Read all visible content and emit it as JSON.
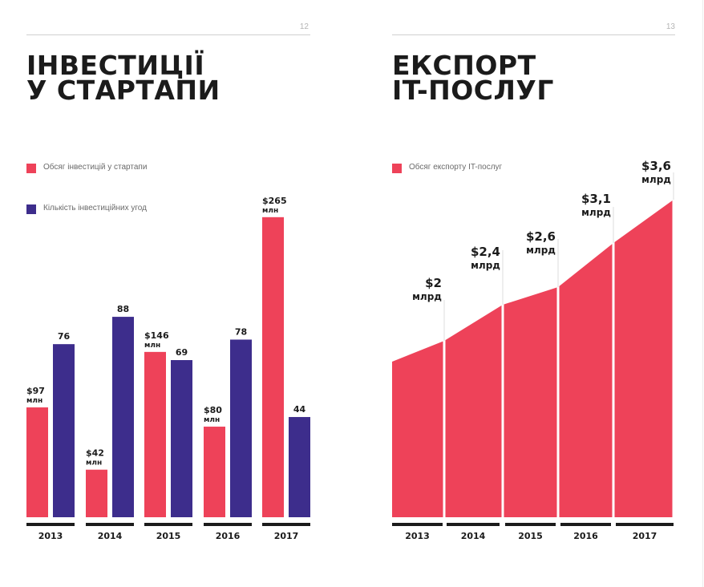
{
  "colors": {
    "red": "#ee4259",
    "purple": "#3d2d8c",
    "ink": "#1b1b1b",
    "muted": "#6a6a6a"
  },
  "left_page": {
    "page_number": "12",
    "title_lines": [
      "ІНВЕСТИЦІЇ",
      "У СТАРТАПИ"
    ],
    "legend": [
      {
        "label": "Обсяг інвестицій у стартапи",
        "color": "#ee4259"
      },
      {
        "label": "Кількість інвестиційних угод",
        "color": "#3d2d8c"
      }
    ]
  },
  "right_page": {
    "page_number": "13",
    "title_lines": [
      "ЕКСПОРТ",
      "IT-ПОСЛУГ"
    ],
    "legend": [
      {
        "label": "Обсяг експорту IT-послуг",
        "color": "#ee4259"
      }
    ]
  },
  "chart_data": [
    {
      "type": "bar",
      "categories": [
        "2013",
        "2014",
        "2015",
        "2016",
        "2017"
      ],
      "series": [
        {
          "name": "Обсяг інвестицій у стартапи",
          "values": [
            97,
            42,
            146,
            80,
            265
          ],
          "value_labels": [
            "$97",
            "$42",
            "$146",
            "$80",
            "$265"
          ],
          "unit_label": "млн",
          "color": "#ee4259"
        },
        {
          "name": "Кількість інвестиційних угод",
          "values": [
            76,
            88,
            69,
            78,
            44
          ],
          "value_labels": [
            "76",
            "88",
            "69",
            "78",
            "44"
          ],
          "color": "#3d2d8c"
        }
      ]
    },
    {
      "type": "area",
      "categories": [
        "2013",
        "2014",
        "2015",
        "2016",
        "2017"
      ],
      "series": [
        {
          "name": "Обсяг експорту IT-послуг",
          "values": [
            2.0,
            2.4,
            2.6,
            3.1,
            3.6
          ],
          "value_labels": [
            "$2",
            "$2,4",
            "$2,6",
            "$3,1",
            "$3,6"
          ],
          "unit_label": "млрд",
          "color": "#ee4259"
        }
      ]
    }
  ]
}
